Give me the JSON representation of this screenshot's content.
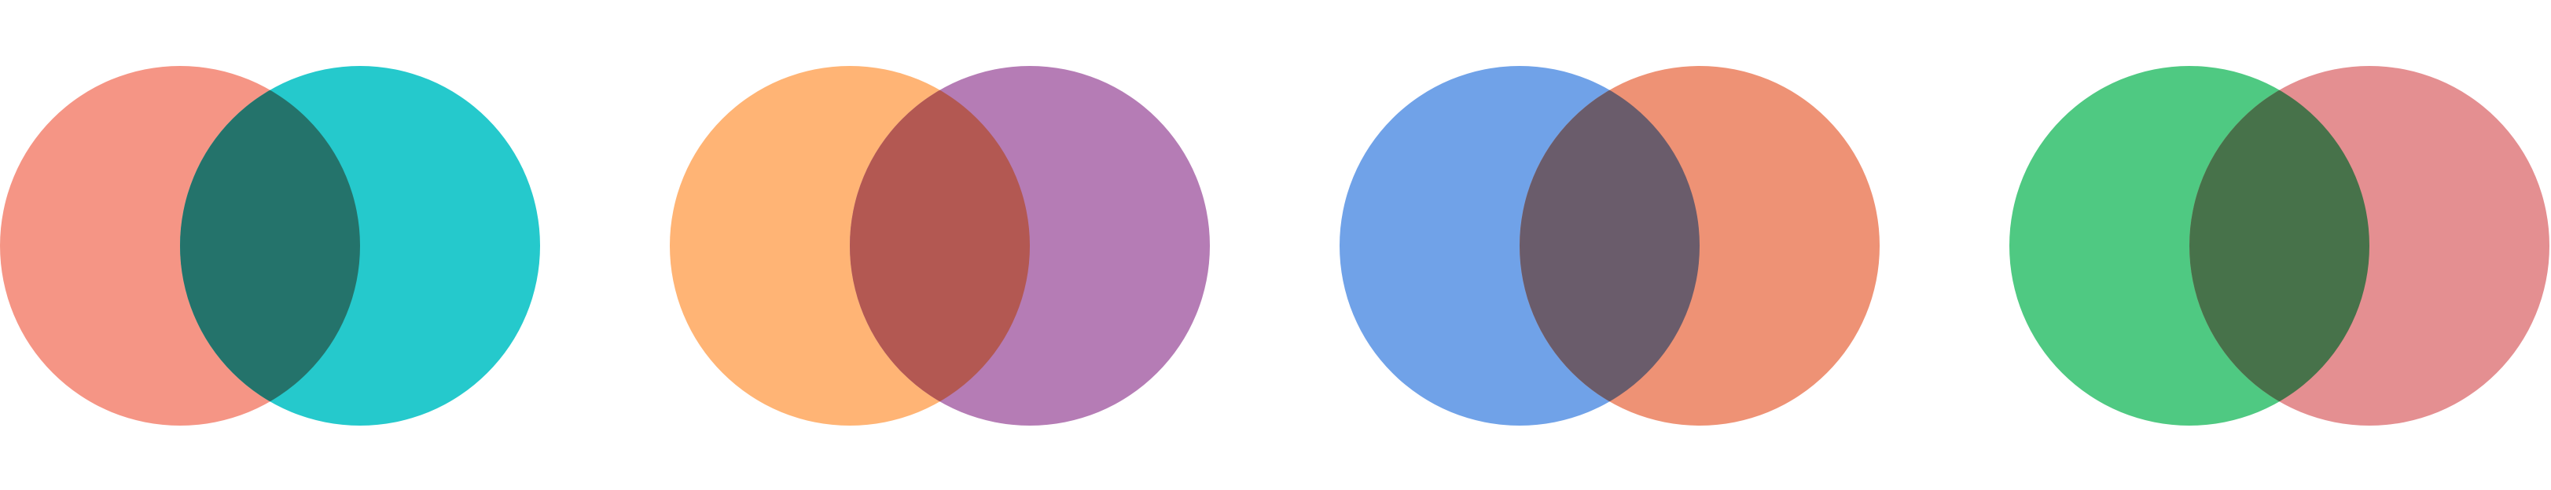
{
  "pairs": [
    {
      "left_color": "#F59585",
      "right_color": "#25C9CC",
      "overlap_color": "#24736B"
    },
    {
      "left_color": "#FFB475",
      "right_color": "#B57CB5",
      "overlap_color": "#B35852"
    },
    {
      "left_color": "#70A2E8",
      "right_color": "#EE9275",
      "overlap_color": "#6A5C6B"
    },
    {
      "left_color": "#4FC982",
      "right_color": "#E48F91",
      "overlap_color": "#47724A"
    }
  ]
}
